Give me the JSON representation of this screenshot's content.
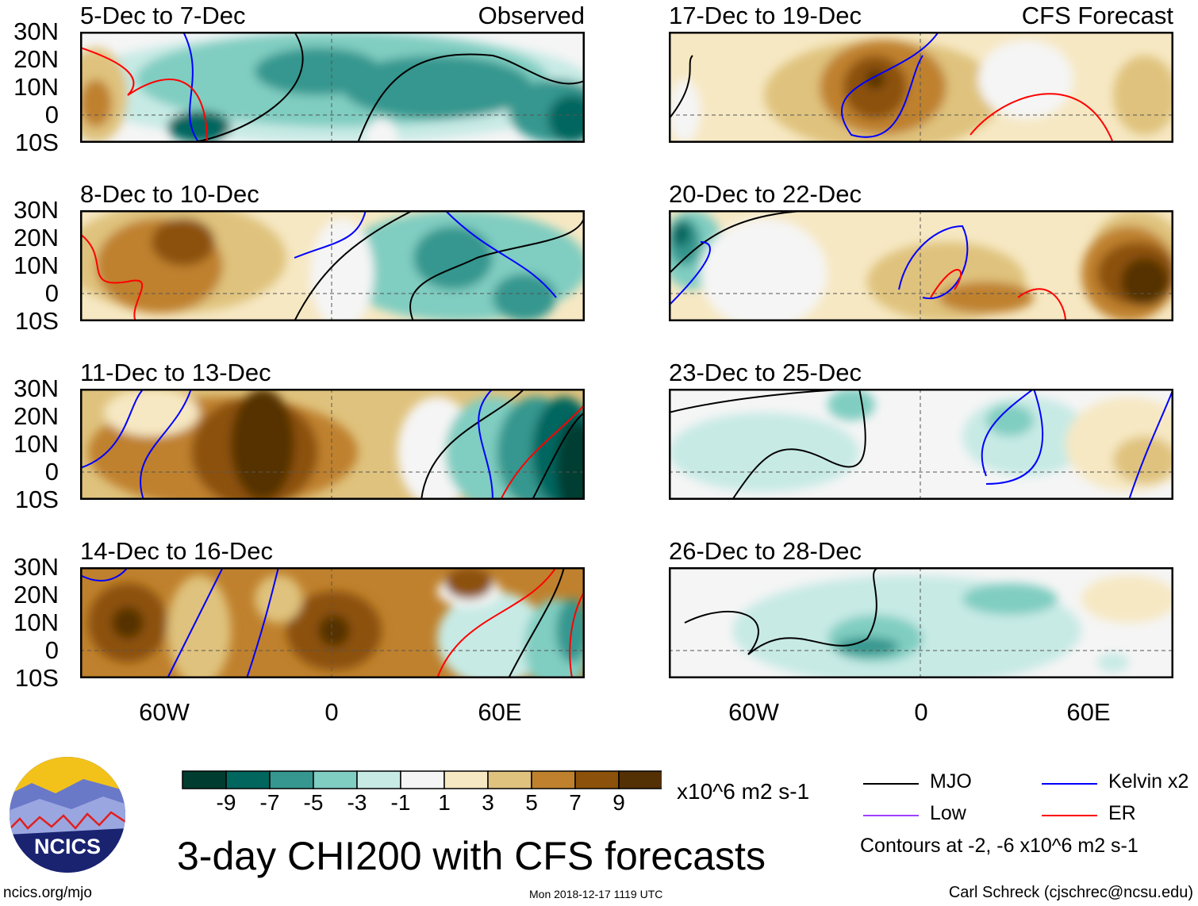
{
  "header": {
    "left": "Observed",
    "right": "CFS Forecast"
  },
  "panels": [
    {
      "title": "5-Dec to 7-Dec"
    },
    {
      "title": "17-Dec to 19-Dec"
    },
    {
      "title": "8-Dec to 10-Dec"
    },
    {
      "title": "20-Dec to 22-Dec"
    },
    {
      "title": "11-Dec to 13-Dec"
    },
    {
      "title": "23-Dec to 25-Dec"
    },
    {
      "title": "14-Dec to 16-Dec"
    },
    {
      "title": "26-Dec to 28-Dec"
    }
  ],
  "lat_labels": [
    "30N",
    "20N",
    "10N",
    "0",
    "10S"
  ],
  "lon_labels": [
    "60W",
    "0",
    "60E"
  ],
  "chart_data": {
    "type": "heatmap",
    "title": "3-day CHI200 with CFS forecasts",
    "lon_range": [
      -90,
      90
    ],
    "lat_range": [
      -10,
      30
    ],
    "colorbar": {
      "levels": [
        "-9",
        "-7",
        "-5",
        "-3",
        "-1",
        "1",
        "3",
        "5",
        "7",
        "9"
      ],
      "colors": [
        "#003c30",
        "#01665e",
        "#35978f",
        "#80cdc1",
        "#c7eae5",
        "#f5f5f5",
        "#f6e8c3",
        "#dfc27d",
        "#bf812d",
        "#8c510a",
        "#543005"
      ],
      "units": "x10^6 m2 s-1"
    }
  },
  "legend": {
    "items": [
      {
        "label": "MJO",
        "color": "#000000"
      },
      {
        "label": "Kelvin x2",
        "color": "#0000ff"
      },
      {
        "label": "Low",
        "color": "#a040ff"
      },
      {
        "label": "ER",
        "color": "#ff0000"
      }
    ],
    "note": "Contours at -2, -6 x10^6 m2 s-1"
  },
  "footer": {
    "left": "ncics.org/mjo",
    "center": "Mon 2018-12-17 1119 UTC",
    "right": "Carl Schreck (cjschrec@ncsu.edu)"
  },
  "logo": {
    "text": "NCICS"
  }
}
